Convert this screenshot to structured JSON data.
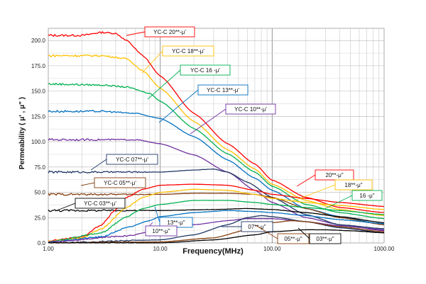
{
  "chart_data": {
    "type": "line",
    "xlabel": "Frequency(MHz)",
    "ylabel": "Permeability ( μ' , μ\" )",
    "xscale": "log",
    "xlim": [
      1,
      1000
    ],
    "ylim": [
      0,
      212
    ],
    "x_ticks": [
      "1.00",
      "10.00",
      "100.00",
      "1000.00"
    ],
    "y_ticks": [
      "0.0",
      "25.0",
      "50.0",
      "75.0",
      "100.0",
      "125.0",
      "150.0",
      "175.0",
      "200.0"
    ],
    "grid": true,
    "series": [
      {
        "name": "YC-C 20**-μ'",
        "kind": "real",
        "color": "#ff0000",
        "label": "YC-C   20**-μ'",
        "points": [
          [
            1,
            205
          ],
          [
            2,
            205
          ],
          [
            3,
            208
          ],
          [
            4,
            207
          ],
          [
            5,
            200
          ],
          [
            7,
            185
          ],
          [
            10,
            165
          ],
          [
            20,
            128
          ],
          [
            40,
            98
          ],
          [
            70,
            78
          ],
          [
            100,
            62
          ],
          [
            200,
            45
          ],
          [
            400,
            35
          ],
          [
            1000,
            30
          ]
        ]
      },
      {
        "name": "YC-C 18**-μ'",
        "kind": "real",
        "color": "#ffc000",
        "label": "YC-C   18**-μ'",
        "points": [
          [
            1,
            185
          ],
          [
            3,
            185
          ],
          [
            5,
            182
          ],
          [
            7,
            170
          ],
          [
            10,
            153
          ],
          [
            20,
            120
          ],
          [
            40,
            92
          ],
          [
            70,
            73
          ],
          [
            100,
            58
          ],
          [
            200,
            42
          ],
          [
            400,
            33
          ],
          [
            1000,
            27
          ]
        ]
      },
      {
        "name": "YC-C 16 -μ'",
        "kind": "real",
        "color": "#00b050",
        "label": "YC-C   16   -μ'",
        "points": [
          [
            1,
            157
          ],
          [
            3,
            156
          ],
          [
            5,
            154
          ],
          [
            8,
            148
          ],
          [
            10,
            140
          ],
          [
            20,
            113
          ],
          [
            40,
            88
          ],
          [
            70,
            70
          ],
          [
            100,
            56
          ],
          [
            200,
            38
          ],
          [
            400,
            30
          ],
          [
            1000,
            24
          ]
        ]
      },
      {
        "name": "YC-C 13**-μ'",
        "kind": "real",
        "color": "#0070c0",
        "label": "YC-C   13**-μ'",
        "points": [
          [
            1,
            130
          ],
          [
            3,
            130
          ],
          [
            6,
            128
          ],
          [
            10,
            123
          ],
          [
            20,
            105
          ],
          [
            40,
            82
          ],
          [
            70,
            64
          ],
          [
            100,
            52
          ],
          [
            200,
            34
          ],
          [
            400,
            26
          ],
          [
            1000,
            18
          ]
        ]
      },
      {
        "name": "YC-C 10**-μ'",
        "kind": "real",
        "color": "#7030a0",
        "label": "YC-C   10**-μ'",
        "points": [
          [
            1,
            102
          ],
          [
            3,
            102
          ],
          [
            6,
            102
          ],
          [
            10,
            98
          ],
          [
            20,
            87
          ],
          [
            40,
            70
          ],
          [
            70,
            52
          ],
          [
            100,
            40
          ],
          [
            200,
            25
          ],
          [
            400,
            18
          ],
          [
            1000,
            12
          ]
        ]
      },
      {
        "name": "YC-C 07**-μ'",
        "kind": "real",
        "color": "#1f3864",
        "label": "YC-C   07**-μ'",
        "points": [
          [
            1,
            70
          ],
          [
            3,
            70
          ],
          [
            6,
            70
          ],
          [
            10,
            70
          ],
          [
            20,
            72
          ],
          [
            30,
            73
          ],
          [
            40,
            70
          ],
          [
            60,
            60
          ],
          [
            100,
            45
          ],
          [
            200,
            28
          ],
          [
            400,
            18
          ],
          [
            1000,
            14
          ]
        ]
      },
      {
        "name": "YC-C 05**-μ'",
        "kind": "real",
        "color": "#843c0c",
        "label": "YC-C   05**-μ'",
        "points": [
          [
            1,
            48
          ],
          [
            5,
            48
          ],
          [
            10,
            48
          ],
          [
            20,
            49
          ],
          [
            40,
            49
          ],
          [
            70,
            48
          ],
          [
            100,
            45
          ],
          [
            200,
            34
          ],
          [
            400,
            25
          ],
          [
            1000,
            18
          ]
        ]
      },
      {
        "name": "YC-C 03**-μ'",
        "kind": "real",
        "color": "#000000",
        "label": "YC-C   03**-μ'",
        "points": [
          [
            1,
            32
          ],
          [
            5,
            32
          ],
          [
            10,
            32
          ],
          [
            30,
            33
          ],
          [
            60,
            34
          ],
          [
            100,
            33
          ],
          [
            200,
            30
          ],
          [
            400,
            26
          ],
          [
            1000,
            20
          ]
        ]
      },
      {
        "name": "20**-μ\"",
        "kind": "imag",
        "color": "#ff0000",
        "label": "20**-μ\"",
        "points": [
          [
            1,
            2
          ],
          [
            2,
            6
          ],
          [
            3,
            18
          ],
          [
            4,
            33
          ],
          [
            5,
            45
          ],
          [
            7,
            53
          ],
          [
            10,
            57
          ],
          [
            20,
            58
          ],
          [
            40,
            57
          ],
          [
            70,
            52
          ],
          [
            100,
            48
          ],
          [
            200,
            44
          ],
          [
            400,
            40
          ],
          [
            1000,
            36
          ]
        ]
      },
      {
        "name": "18**-μ\"",
        "kind": "imag",
        "color": "#ffc000",
        "label": "18**-μ\"",
        "points": [
          [
            1,
            2
          ],
          [
            2,
            5
          ],
          [
            3,
            14
          ],
          [
            5,
            35
          ],
          [
            7,
            45
          ],
          [
            10,
            50
          ],
          [
            20,
            53
          ],
          [
            40,
            52
          ],
          [
            70,
            48
          ],
          [
            100,
            44
          ],
          [
            200,
            40
          ],
          [
            400,
            37
          ],
          [
            1000,
            33
          ]
        ]
      },
      {
        "name": "16 -μ\"",
        "kind": "imag",
        "color": "#00b050",
        "label": "16    -μ\"",
        "points": [
          [
            1,
            1
          ],
          [
            3,
            10
          ],
          [
            5,
            26
          ],
          [
            7,
            34
          ],
          [
            10,
            38
          ],
          [
            20,
            42
          ],
          [
            40,
            42
          ],
          [
            70,
            40
          ],
          [
            100,
            38
          ],
          [
            200,
            35
          ],
          [
            400,
            32
          ],
          [
            1000,
            28
          ]
        ]
      },
      {
        "name": "13**-μ\"",
        "kind": "imag",
        "color": "#0070c0",
        "label": "13**-μ\"",
        "points": [
          [
            1,
            1
          ],
          [
            3,
            6
          ],
          [
            5,
            15
          ],
          [
            8,
            22
          ],
          [
            10,
            26
          ],
          [
            20,
            30
          ],
          [
            40,
            32
          ],
          [
            70,
            31
          ],
          [
            100,
            30
          ],
          [
            200,
            27
          ],
          [
            400,
            23
          ],
          [
            1000,
            19
          ]
        ]
      },
      {
        "name": "10**-μ\"",
        "kind": "imag",
        "color": "#7030a0",
        "label": "10**-μ\"",
        "points": [
          [
            1,
            1
          ],
          [
            5,
            7
          ],
          [
            10,
            13
          ],
          [
            20,
            18
          ],
          [
            40,
            22
          ],
          [
            60,
            24
          ],
          [
            100,
            24
          ],
          [
            200,
            21
          ],
          [
            400,
            17
          ],
          [
            1000,
            13
          ]
        ]
      },
      {
        "name": "07**-μ\"",
        "kind": "imag",
        "color": "#1f3864",
        "label": "07**-μ\"",
        "points": [
          [
            1,
            0
          ],
          [
            10,
            3
          ],
          [
            20,
            8
          ],
          [
            40,
            18
          ],
          [
            60,
            25
          ],
          [
            80,
            27
          ],
          [
            100,
            26
          ],
          [
            200,
            21
          ],
          [
            400,
            15
          ],
          [
            1000,
            10
          ]
        ]
      },
      {
        "name": "05**-μ\"",
        "kind": "imag",
        "color": "#843c0c",
        "label": "05**-μ\"",
        "points": [
          [
            1,
            0
          ],
          [
            10,
            1
          ],
          [
            30,
            5
          ],
          [
            60,
            13
          ],
          [
            100,
            20
          ],
          [
            150,
            22
          ],
          [
            200,
            21
          ],
          [
            400,
            16
          ],
          [
            1000,
            11
          ]
        ]
      },
      {
        "name": "03**-μ\"",
        "kind": "imag",
        "color": "#000000",
        "label": "03**-μ\"",
        "points": [
          [
            1,
            0
          ],
          [
            10,
            0
          ],
          [
            30,
            3
          ],
          [
            70,
            8
          ],
          [
            100,
            11
          ],
          [
            200,
            13
          ],
          [
            300,
            13
          ],
          [
            500,
            12
          ],
          [
            1000,
            10
          ]
        ]
      }
    ]
  }
}
